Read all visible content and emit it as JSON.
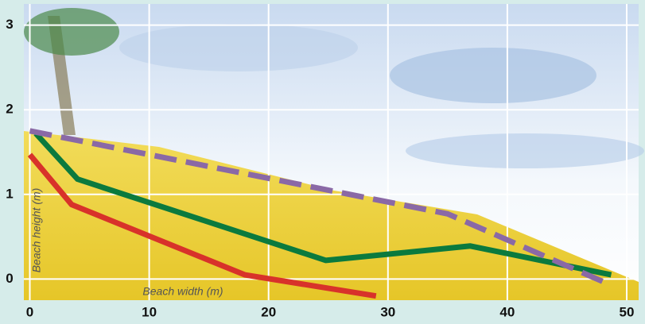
{
  "chart_data": {
    "type": "line",
    "x_label": "Beach width (m)",
    "y_label": "Beach height (m)",
    "xlim": [
      -0.5,
      51
    ],
    "ylim": [
      -0.25,
      3.25
    ],
    "xticks": [
      0,
      10,
      20,
      30,
      40,
      50
    ],
    "yticks": [
      0,
      1,
      2,
      3
    ],
    "grid": true,
    "series": [
      {
        "color": "#d8322a",
        "dashed": false,
        "x": [
          0,
          3.5,
          18,
          29
        ],
        "values": [
          1.47,
          0.88,
          0.05,
          -0.2
        ]
      },
      {
        "color": "#0b7a3e",
        "dashed": false,
        "x": [
          0.5,
          4,
          24.8,
          36.9,
          48.7
        ],
        "values": [
          1.72,
          1.18,
          0.22,
          0.39,
          0.05
        ]
      },
      {
        "color": "#8a69a6",
        "dashed": true,
        "x": [
          0,
          25,
          35,
          48
        ],
        "values": [
          1.75,
          1.05,
          0.77,
          -0.03
        ]
      }
    ]
  }
}
